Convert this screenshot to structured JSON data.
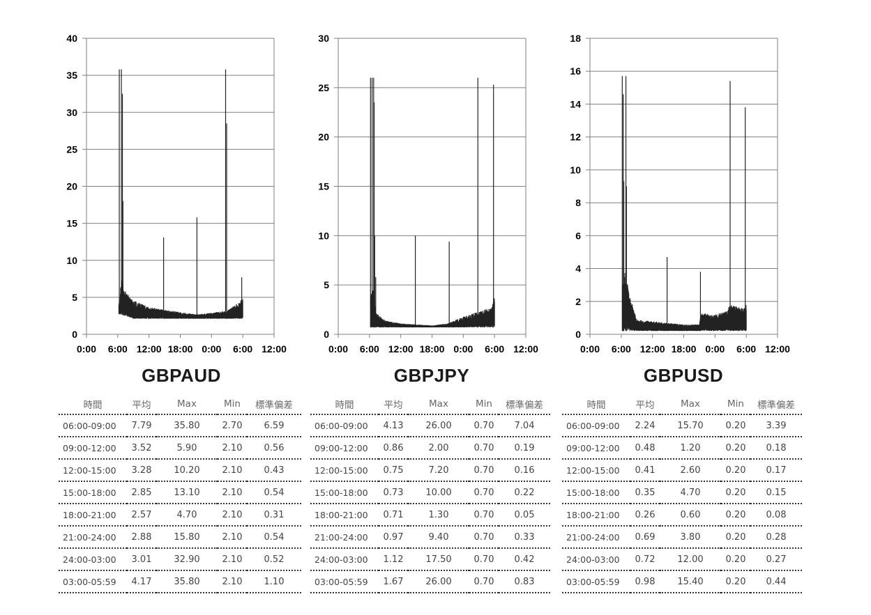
{
  "chart_data": [
    {
      "type": "line",
      "title": "GBPAUD",
      "ylim": [
        0,
        40
      ],
      "yticks": [
        0,
        5,
        10,
        15,
        20,
        25,
        30,
        35,
        40
      ],
      "xticks": [
        "0:00",
        "6:00",
        "12:00",
        "18:00",
        "0:00",
        "6:00",
        "12:00"
      ],
      "series_color": "#222222",
      "baseline": [
        [
          6.2,
          4
        ],
        [
          6.8,
          8
        ],
        [
          7.2,
          6
        ],
        [
          9,
          4.6
        ],
        [
          12,
          3.7
        ],
        [
          15,
          3.3
        ],
        [
          18,
          3.0
        ],
        [
          21,
          2.7
        ],
        [
          24,
          2.9
        ],
        [
          27,
          3.2
        ],
        [
          29.5,
          4.5
        ],
        [
          30,
          5
        ]
      ],
      "band_floor": [
        [
          6.6,
          2.7
        ],
        [
          9,
          2.1
        ],
        [
          30,
          2.1
        ]
      ],
      "spikes": [
        [
          6.3,
          35.8
        ],
        [
          6.7,
          35.8
        ],
        [
          6.9,
          32.5
        ],
        [
          7.0,
          18.0
        ],
        [
          14.8,
          13.1
        ],
        [
          21.2,
          15.8
        ],
        [
          26.7,
          35.8
        ],
        [
          26.9,
          28.5
        ],
        [
          29.8,
          7.7
        ]
      ],
      "end_x": 30
    },
    {
      "type": "line",
      "title": "GBPJPY",
      "ylim": [
        0,
        30
      ],
      "yticks": [
        0,
        5,
        10,
        15,
        20,
        25,
        30
      ],
      "xticks": [
        "0:00",
        "6:00",
        "12:00",
        "18:00",
        "0:00",
        "6:00",
        "12:00"
      ],
      "series_color": "#222222",
      "baseline": [
        [
          6.2,
          4
        ],
        [
          6.8,
          5
        ],
        [
          7.2,
          2.2
        ],
        [
          9,
          1.4
        ],
        [
          12,
          1.1
        ],
        [
          15,
          1.0
        ],
        [
          18,
          0.9
        ],
        [
          21,
          1.1
        ],
        [
          24,
          1.8
        ],
        [
          27,
          2.3
        ],
        [
          29.5,
          2.8
        ],
        [
          30,
          4
        ]
      ],
      "band_floor": [
        [
          7.2,
          0.7
        ],
        [
          30,
          0.7
        ]
      ],
      "spikes": [
        [
          6.2,
          26.0
        ],
        [
          6.5,
          26.0
        ],
        [
          6.8,
          26.0
        ],
        [
          6.9,
          23.5
        ],
        [
          7.0,
          10.0
        ],
        [
          7.2,
          5.8
        ],
        [
          14.8,
          10.0
        ],
        [
          21.3,
          9.4
        ],
        [
          26.8,
          26.0
        ],
        [
          29.8,
          25.3
        ]
      ],
      "end_x": 30
    },
    {
      "type": "line",
      "title": "GBPUSD",
      "ylim": [
        0,
        18
      ],
      "yticks": [
        0,
        2,
        4,
        6,
        8,
        10,
        12,
        14,
        16,
        18
      ],
      "xticks": [
        "0:00",
        "6:00",
        "12:00",
        "18:00",
        "0:00",
        "6:00",
        "12:00"
      ],
      "series_color": "#222222",
      "baseline": [
        [
          6.2,
          3
        ],
        [
          6.8,
          4
        ],
        [
          7.5,
          2.5
        ],
        [
          9,
          0.9
        ],
        [
          12,
          0.8
        ],
        [
          15,
          0.7
        ],
        [
          18,
          0.6
        ],
        [
          21,
          0.6
        ],
        [
          21.2,
          1.3
        ],
        [
          24,
          1.2
        ],
        [
          26,
          1.4
        ],
        [
          27,
          1.8
        ],
        [
          29.5,
          1.6
        ],
        [
          30,
          2
        ]
      ],
      "band_floor": [
        [
          7.5,
          0.2
        ],
        [
          30,
          0.2
        ]
      ],
      "spikes": [
        [
          6.2,
          15.7
        ],
        [
          6.4,
          14.6
        ],
        [
          6.5,
          9.3
        ],
        [
          6.9,
          15.7
        ],
        [
          7.0,
          9.0
        ],
        [
          14.8,
          4.7
        ],
        [
          21.2,
          3.8
        ],
        [
          26.9,
          15.4
        ],
        [
          29.8,
          13.8
        ]
      ],
      "end_x": 30
    }
  ],
  "tables": [
    {
      "headers": [
        "時間",
        "平均",
        "Max",
        "Min",
        "標準偏差"
      ],
      "rows": [
        [
          "06:00-09:00",
          "7.79",
          "35.80",
          "2.70",
          "6.59"
        ],
        [
          "09:00-12:00",
          "3.52",
          "5.90",
          "2.10",
          "0.56"
        ],
        [
          "12:00-15:00",
          "3.28",
          "10.20",
          "2.10",
          "0.43"
        ],
        [
          "15:00-18:00",
          "2.85",
          "13.10",
          "2.10",
          "0.54"
        ],
        [
          "18:00-21:00",
          "2.57",
          "4.70",
          "2.10",
          "0.31"
        ],
        [
          "21:00-24:00",
          "2.88",
          "15.80",
          "2.10",
          "0.54"
        ],
        [
          "24:00-03:00",
          "3.01",
          "32.90",
          "2.10",
          "0.52"
        ],
        [
          "03:00-05:59",
          "4.17",
          "35.80",
          "2.10",
          "1.10"
        ]
      ]
    },
    {
      "headers": [
        "時間",
        "平均",
        "Max",
        "Min",
        "標準偏差"
      ],
      "rows": [
        [
          "06:00-09:00",
          "4.13",
          "26.00",
          "0.70",
          "7.04"
        ],
        [
          "09:00-12:00",
          "0.86",
          "2.00",
          "0.70",
          "0.19"
        ],
        [
          "12:00-15:00",
          "0.75",
          "7.20",
          "0.70",
          "0.16"
        ],
        [
          "15:00-18:00",
          "0.73",
          "10.00",
          "0.70",
          "0.22"
        ],
        [
          "18:00-21:00",
          "0.71",
          "1.30",
          "0.70",
          "0.05"
        ],
        [
          "21:00-24:00",
          "0.97",
          "9.40",
          "0.70",
          "0.33"
        ],
        [
          "24:00-03:00",
          "1.12",
          "17.50",
          "0.70",
          "0.42"
        ],
        [
          "03:00-05:59",
          "1.67",
          "26.00",
          "0.70",
          "0.83"
        ]
      ]
    },
    {
      "headers": [
        "時間",
        "平均",
        "Max",
        "Min",
        "標準偏差"
      ],
      "rows": [
        [
          "06:00-09:00",
          "2.24",
          "15.70",
          "0.20",
          "3.39"
        ],
        [
          "09:00-12:00",
          "0.48",
          "1.20",
          "0.20",
          "0.18"
        ],
        [
          "12:00-15:00",
          "0.41",
          "2.60",
          "0.20",
          "0.17"
        ],
        [
          "15:00-18:00",
          "0.35",
          "4.70",
          "0.20",
          "0.15"
        ],
        [
          "18:00-21:00",
          "0.26",
          "0.60",
          "0.20",
          "0.08"
        ],
        [
          "21:00-24:00",
          "0.69",
          "3.80",
          "0.20",
          "0.28"
        ],
        [
          "24:00-03:00",
          "0.72",
          "12.00",
          "0.20",
          "0.27"
        ],
        [
          "03:00-05:59",
          "0.98",
          "15.40",
          "0.20",
          "0.44"
        ]
      ]
    }
  ]
}
